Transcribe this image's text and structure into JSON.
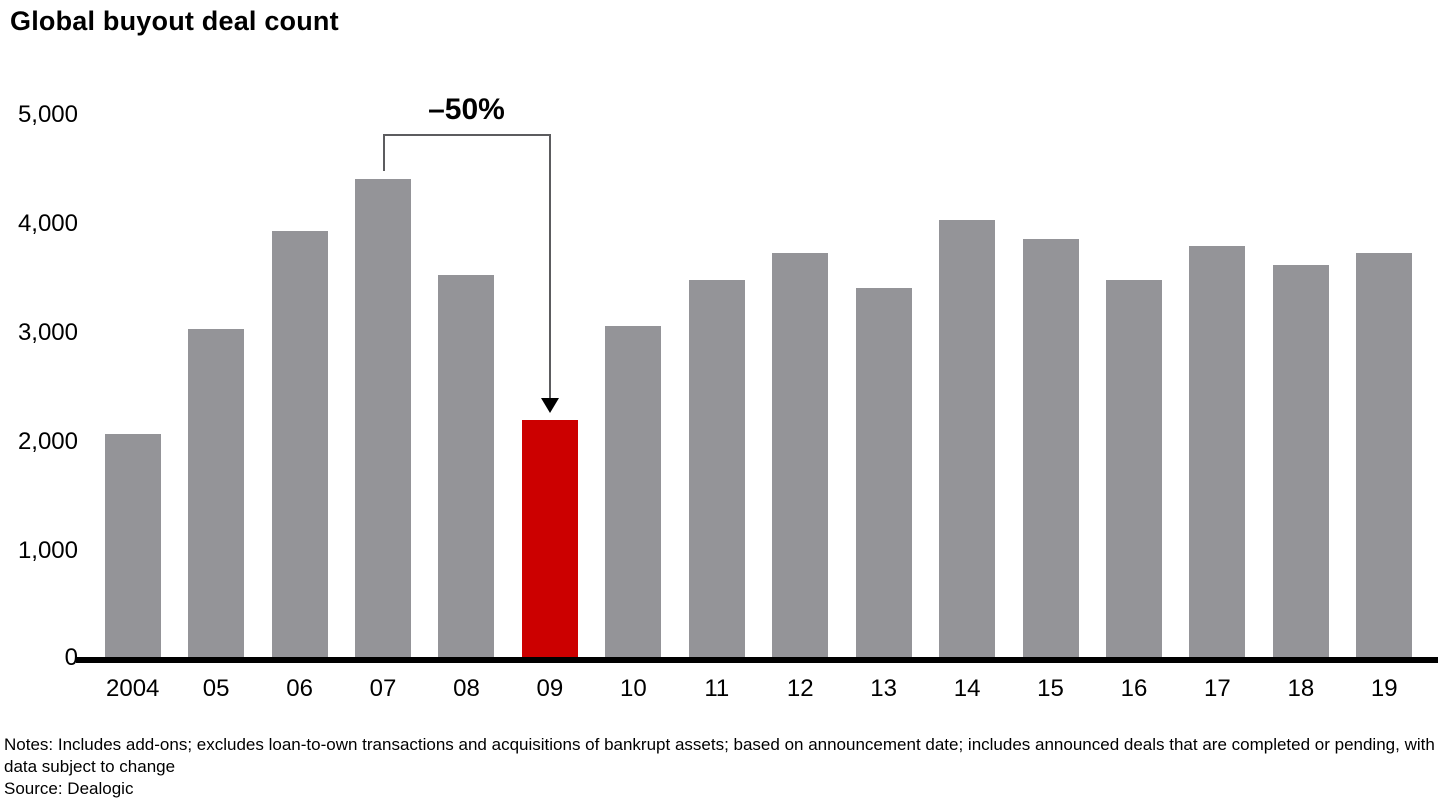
{
  "title": "Global buyout deal count",
  "chart_data": {
    "type": "bar",
    "title": "Global buyout deal count",
    "categories": [
      "2004",
      "05",
      "06",
      "07",
      "08",
      "09",
      "10",
      "11",
      "12",
      "13",
      "14",
      "15",
      "16",
      "17",
      "18",
      "19"
    ],
    "values": [
      2070,
      3040,
      3940,
      4410,
      3530,
      2200,
      3060,
      3490,
      3730,
      3410,
      4040,
      3860,
      3490,
      3800,
      3620,
      3730
    ],
    "highlight_index": 5,
    "highlight_category": "09",
    "bar_color": "#949498",
    "highlight_color": "#CC0000",
    "ylim": [
      0,
      5000
    ],
    "ytick_labels": [
      "5,000",
      "4,000",
      "3,000",
      "2,000",
      "1,000",
      "0"
    ],
    "xlabel": "",
    "ylabel": "",
    "grid": false,
    "legend": "none",
    "annotation": {
      "label": "–50%",
      "from_category": "07",
      "to_category": "09"
    }
  },
  "footer": {
    "notes": "Notes: Includes add-ons; excludes loan-to-own transactions and acquisitions of bankrupt assets; based on announcement date; includes announced deals that are completed or pending, with data subject to change",
    "source": "Source: Dealogic"
  }
}
